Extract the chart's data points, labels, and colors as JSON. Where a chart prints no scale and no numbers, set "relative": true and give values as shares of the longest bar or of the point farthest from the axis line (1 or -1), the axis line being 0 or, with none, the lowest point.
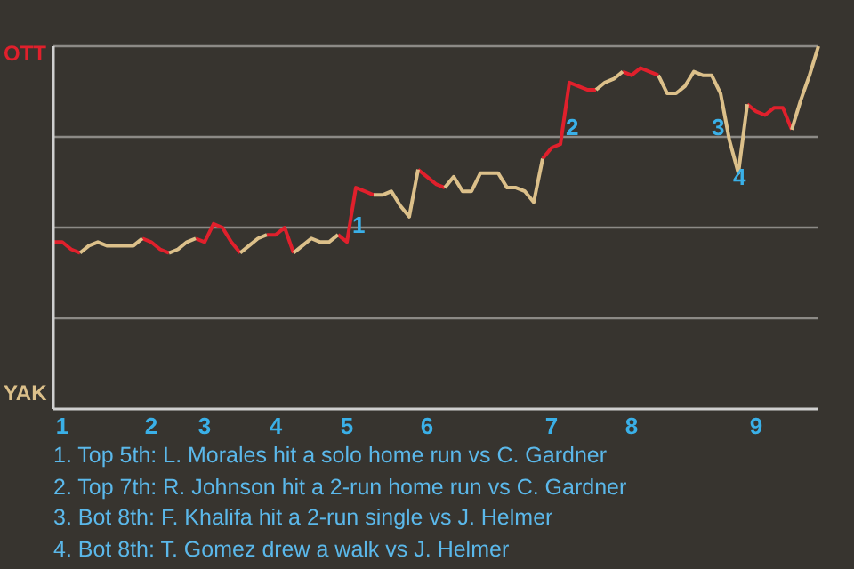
{
  "chart_data": {
    "type": "line",
    "relative": true,
    "categories": [
      null,
      "1",
      null,
      null,
      null,
      null,
      null,
      null,
      null,
      null,
      null,
      "2",
      null,
      null,
      null,
      null,
      null,
      "3",
      null,
      null,
      null,
      null,
      null,
      null,
      null,
      "4",
      null,
      null,
      null,
      null,
      null,
      null,
      null,
      "5",
      null,
      null,
      null,
      null,
      null,
      null,
      null,
      null,
      "6",
      null,
      null,
      null,
      null,
      null,
      null,
      null,
      null,
      null,
      null,
      null,
      null,
      null,
      "7",
      null,
      null,
      null,
      null,
      null,
      null,
      null,
      null,
      "8",
      null,
      null,
      null,
      null,
      null,
      null,
      null,
      null,
      null,
      null,
      null,
      null,
      null,
      "9",
      null,
      null,
      null,
      null,
      null,
      null,
      null
    ],
    "series": [
      {
        "color": "#e0202c",
        "values": [
          0.46,
          0.46,
          0.44,
          0.43,
          null,
          null,
          null,
          null,
          null,
          null,
          0.47,
          0.46,
          0.44,
          0.43,
          null,
          null,
          0.47,
          0.46,
          0.51,
          0.5,
          0.46,
          0.43,
          null,
          null,
          0.48,
          0.48,
          0.5,
          0.43,
          null,
          null,
          null,
          null,
          0.48,
          0.46,
          0.61,
          0.6,
          0.59,
          null,
          null,
          null,
          null,
          0.66,
          0.64,
          0.62,
          0.61,
          null,
          null,
          null,
          null,
          null,
          null,
          null,
          null,
          null,
          null,
          0.69,
          0.72,
          0.73,
          0.9,
          0.89,
          0.88,
          0.88,
          null,
          null,
          0.93,
          0.92,
          0.94,
          0.93,
          0.92,
          null,
          null,
          null,
          null,
          null,
          null,
          null,
          null,
          null,
          0.84,
          0.82,
          0.81,
          0.83,
          0.83,
          0.77,
          null,
          null,
          null
        ]
      },
      {
        "color": "#dcc08a",
        "values": [
          null,
          null,
          null,
          0.43,
          0.45,
          0.46,
          0.45,
          0.45,
          0.45,
          0.45,
          0.47,
          null,
          null,
          0.43,
          0.44,
          0.46,
          0.47,
          null,
          null,
          null,
          null,
          0.43,
          0.45,
          0.47,
          0.48,
          null,
          null,
          0.43,
          0.45,
          0.47,
          0.46,
          0.46,
          0.48,
          null,
          null,
          null,
          0.59,
          0.59,
          0.6,
          0.56,
          0.53,
          0.66,
          null,
          null,
          0.61,
          0.64,
          0.6,
          0.6,
          0.65,
          0.65,
          0.65,
          0.61,
          0.61,
          0.6,
          0.57,
          0.69,
          null,
          null,
          null,
          null,
          null,
          0.88,
          0.9,
          0.91,
          0.93,
          null,
          null,
          null,
          0.92,
          0.87,
          0.87,
          0.89,
          0.93,
          0.92,
          0.92,
          0.87,
          0.74,
          0.65,
          0.84,
          null,
          null,
          null,
          null,
          0.77,
          0.85,
          0.92,
          1
        ]
      }
    ],
    "grid": "y",
    "annotations": [
      "OTT",
      "YAK",
      "1",
      "2",
      "3",
      "4",
      "1. Top 5th: L. Morales hit a solo home run vs C. Gardner",
      "2. Top 7th: R. Johnson hit a 2-run home run vs C. Gardner",
      "3. Bot 8th: F. Khalifa hit a 2-run single vs J. Helmer",
      "4. Bot 8th: T. Gomez drew a walk vs J. Helmer"
    ]
  }
}
